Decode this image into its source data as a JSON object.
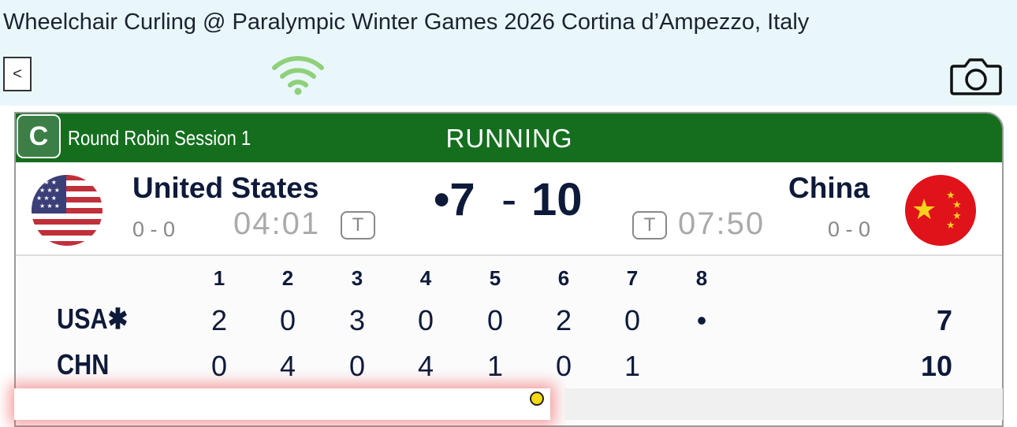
{
  "app": {
    "title": "Wheelchair Curling @ Paralympic Winter Games 2026 Cortina d’Ampezzo, Italy",
    "back_label": "<",
    "wifi_icon": "wifi-icon",
    "camera_icon": "camera-icon"
  },
  "header": {
    "sheet": "C",
    "session": "Round Robin Session 1",
    "status": "RUNNING",
    "color": "#146e1e"
  },
  "home": {
    "name": "United States",
    "record": "0 - 0",
    "clock": "04:01",
    "timeout": "T",
    "score": "7",
    "hammer": "•"
  },
  "away": {
    "name": "China",
    "record": "0 - 0",
    "clock": "07:50",
    "timeout": "T",
    "score": "10"
  },
  "separator": "-",
  "linescore": {
    "ends": [
      "1",
      "2",
      "3",
      "4",
      "5",
      "6",
      "7",
      "8"
    ],
    "rows": [
      {
        "team": "USA✱",
        "ends": [
          "2",
          "0",
          "3",
          "0",
          "0",
          "2",
          "0",
          "•"
        ],
        "total": "7"
      },
      {
        "team": "CHN",
        "ends": [
          "0",
          "4",
          "0",
          "4",
          "1",
          "0",
          "1",
          ""
        ],
        "total": "10"
      }
    ]
  }
}
